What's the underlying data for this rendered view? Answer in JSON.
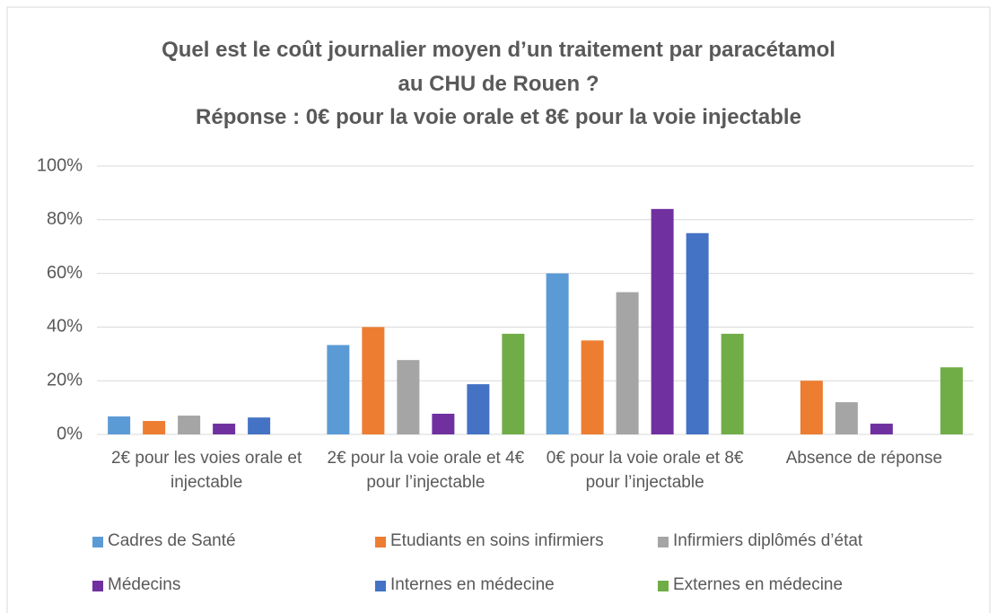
{
  "chart_data": {
    "type": "bar",
    "title": [
      "Quel est le coût journalier moyen d’un traitement par paracétamol",
      "au CHU de Rouen ?"
    ],
    "subtitle": "Réponse : 0€ pour la voie orale et 8€ pour la voie injectable",
    "categories": [
      "2€ pour les voies orale et injectable",
      "2€ pour la voie orale et 4€ pour l’injectable",
      "0€ pour la voie orale et 8€ pour l’injectable",
      "Absence de réponse"
    ],
    "series": [
      {
        "name": "Cadres de Santé",
        "color": "#5b9bd5",
        "values": [
          6.7,
          33.3,
          60,
          0
        ]
      },
      {
        "name": "Etudiants en soins infirmiers",
        "color": "#ed7d31",
        "values": [
          5,
          40,
          35,
          20
        ]
      },
      {
        "name": "Infirmiers diplômés d’état",
        "color": "#a5a5a5",
        "values": [
          7,
          27.7,
          53,
          12
        ]
      },
      {
        "name": "Médecins",
        "color": "#7030a0",
        "values": [
          4,
          7.7,
          84,
          4
        ]
      },
      {
        "name": "Internes en médecine",
        "color": "#4472c4",
        "values": [
          6.3,
          18.7,
          75,
          0
        ]
      },
      {
        "name": "Externes en médecine",
        "color": "#70ad47",
        "values": [
          0,
          37.5,
          37.5,
          25
        ]
      }
    ],
    "ylim": [
      0,
      100
    ],
    "yticks": [
      {
        "value": 0,
        "label": "0%"
      },
      {
        "value": 20,
        "label": "20%"
      },
      {
        "value": 40,
        "label": "40%"
      },
      {
        "value": 60,
        "label": "60%"
      },
      {
        "value": 80,
        "label": "80%"
      },
      {
        "value": 100,
        "label": "100%"
      }
    ],
    "grid": true,
    "legend": "bottom"
  }
}
